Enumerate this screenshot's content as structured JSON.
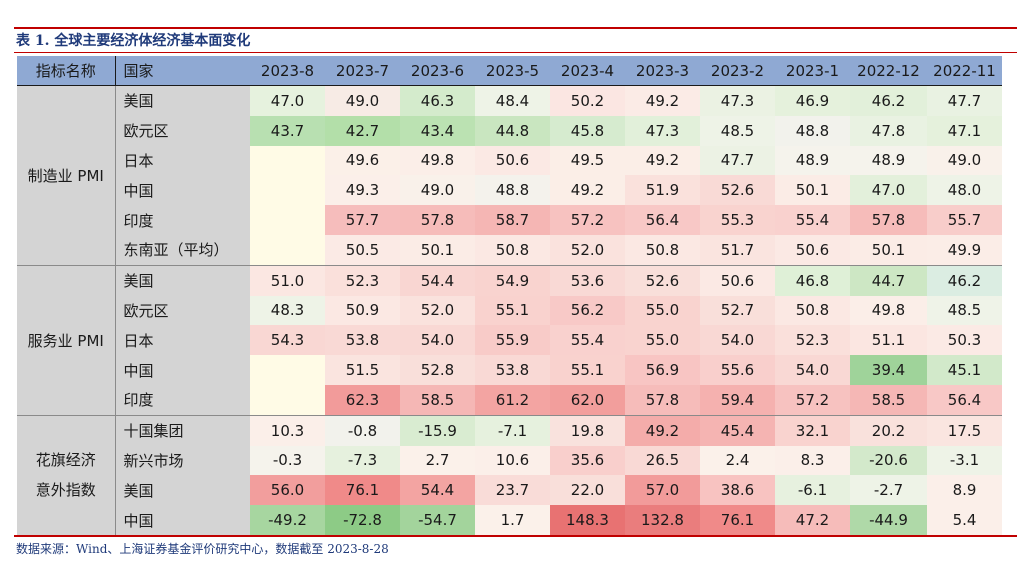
{
  "title": "表 1.  全球主要经济体经济基本面变化",
  "source": "数据来源：Wind、上海证券基金评价研究中心，数据截至 2023-8-28",
  "headers": {
    "indicator": "指标名称",
    "country": "国家",
    "months": [
      "2023-8",
      "2023-7",
      "2023-6",
      "2023-5",
      "2023-4",
      "2023-3",
      "2023-2",
      "2023-1",
      "2022-12",
      "2022-11"
    ]
  },
  "groups": [
    {
      "name": "制造业 PMI",
      "rows": [
        {
          "country": "美国",
          "values": [
            "47.0",
            "49.0",
            "46.3",
            "48.4",
            "50.2",
            "49.2",
            "47.3",
            "46.9",
            "46.2",
            "47.7"
          ],
          "colors": [
            "#e6f2de",
            "#f7ebe5",
            "#d4ebcc",
            "#eef3e7",
            "#fbe6e2",
            "#fbebe6",
            "#ebf2e3",
            "#e5f1dc",
            "#e2f0da",
            "#e9f2e2"
          ]
        },
        {
          "country": "欧元区",
          "values": [
            "43.7",
            "42.7",
            "43.4",
            "44.8",
            "45.8",
            "47.3",
            "48.5",
            "48.8",
            "47.8",
            "47.1"
          ],
          "colors": [
            "#b8e0b1",
            "#b3dfa9",
            "#bbe2b2",
            "#c9e6c0",
            "#d6ebcf",
            "#e2f0da",
            "#eef3e7",
            "#f2f2ec",
            "#e9f2e2",
            "#e5f1dc"
          ]
        },
        {
          "country": "日本",
          "values": [
            "",
            "49.6",
            "49.8",
            "50.6",
            "49.5",
            "49.2",
            "47.7",
            "48.9",
            "48.9",
            "49.0"
          ],
          "colors": [
            "#fffbe6",
            "#fbf0e8",
            "#fbeee8",
            "#fbe9e4",
            "#fbeee7",
            "#fbeee7",
            "#ecf2e4",
            "#f5f3ec",
            "#f5f3ec",
            "#f9f1ea"
          ]
        },
        {
          "country": "中国",
          "values": [
            "",
            "49.3",
            "49.0",
            "48.8",
            "49.2",
            "51.9",
            "52.6",
            "50.1",
            "47.0",
            "48.0"
          ],
          "colors": [
            "#fffbe6",
            "#fbefe9",
            "#f9f1ea",
            "#f4f2ec",
            "#fbeee7",
            "#fae1dc",
            "#f9dad6",
            "#fbece6",
            "#e3f0db",
            "#eef3e7"
          ]
        },
        {
          "country": "印度",
          "values": [
            "",
            "57.7",
            "57.8",
            "58.7",
            "57.2",
            "56.4",
            "55.3",
            "55.4",
            "57.8",
            "55.7"
          ],
          "colors": [
            "#fffbe6",
            "#f6bdbc",
            "#f6bcba",
            "#f5b6b4",
            "#f7c2c0",
            "#f8c8c6",
            "#f9d3cf",
            "#f9d1ce",
            "#f6bcba",
            "#f8cdca"
          ]
        },
        {
          "country": "东南亚（平均）",
          "values": [
            "",
            "50.5",
            "50.1",
            "50.8",
            "52.0",
            "50.8",
            "51.7",
            "50.6",
            "50.1",
            "49.9"
          ],
          "colors": [
            "#fffbe6",
            "#fbeae5",
            "#fbece6",
            "#fbe8e3",
            "#fae2dd",
            "#fbe8e3",
            "#fae4df",
            "#fbe9e4",
            "#fbece6",
            "#fbede7"
          ]
        }
      ]
    },
    {
      "name": "服务业 PMI",
      "rows": [
        {
          "country": "美国",
          "values": [
            "51.0",
            "52.3",
            "54.4",
            "54.9",
            "53.6",
            "52.6",
            "50.6",
            "46.8",
            "44.7",
            "46.2"
          ],
          "colors": [
            "#fbe7e2",
            "#fae0db",
            "#f9d6d2",
            "#f9d3cf",
            "#f9d9d5",
            "#f9dfda",
            "#fbe9e4",
            "#dff0d7",
            "#cde7c4",
            "#dbede2"
          ]
        },
        {
          "country": "欧元区",
          "values": [
            "48.3",
            "50.9",
            "52.0",
            "55.1",
            "56.2",
            "55.0",
            "52.7",
            "50.8",
            "49.8",
            "48.5"
          ],
          "colors": [
            "#eef3e7",
            "#fbe8e3",
            "#fae2dd",
            "#f9d2ce",
            "#f8c9c7",
            "#f9d3cf",
            "#f9dfda",
            "#fbe8e3",
            "#fbeee8",
            "#eff3e8"
          ]
        },
        {
          "country": "日本",
          "values": [
            "54.3",
            "53.8",
            "54.0",
            "55.9",
            "55.4",
            "55.0",
            "54.0",
            "52.3",
            "51.1",
            "50.3"
          ],
          "colors": [
            "#f9d7d3",
            "#f9d9d5",
            "#f9d8d4",
            "#f8cbc8",
            "#f9d1ce",
            "#f9d3cf",
            "#f9d8d4",
            "#fae0db",
            "#fbe6e1",
            "#fbeae5"
          ]
        },
        {
          "country": "中国",
          "values": [
            "",
            "51.5",
            "52.8",
            "53.8",
            "55.1",
            "56.9",
            "55.6",
            "54.0",
            "39.4",
            "45.1"
          ],
          "colors": [
            "#fffbe6",
            "#fae4df",
            "#f9dfda",
            "#f9d9d5",
            "#f9d2ce",
            "#f8c5c3",
            "#f9cfcc",
            "#f9d8d4",
            "#9fd39a",
            "#d2e9ca"
          ]
        },
        {
          "country": "印度",
          "values": [
            "",
            "62.3",
            "58.5",
            "61.2",
            "62.0",
            "57.8",
            "59.4",
            "57.2",
            "58.5",
            "56.4"
          ],
          "colors": [
            "#fffbe6",
            "#f29b9a",
            "#f5b7b5",
            "#f3a4a2",
            "#f29e9c",
            "#f6bcba",
            "#f5b1af",
            "#f7c2c0",
            "#f5b7b5",
            "#f8c8c6"
          ]
        }
      ]
    },
    {
      "name": "花旗经济意外指数",
      "rows": [
        {
          "country": "十国集团",
          "values": [
            "10.3",
            "-0.8",
            "-15.9",
            "-7.1",
            "19.8",
            "49.2",
            "45.4",
            "32.1",
            "20.2",
            "17.5"
          ],
          "colors": [
            "#fbefe9",
            "#f2f2ec",
            "#d9ecd1",
            "#e6f1de",
            "#f9e2dd",
            "#f4acaa",
            "#f5b4b2",
            "#f9d3cf",
            "#f9e1dc",
            "#fae5e0"
          ]
        },
        {
          "country": "新兴市场",
          "values": [
            "-0.3",
            "-7.3",
            "2.7",
            "10.6",
            "35.6",
            "26.5",
            "2.4",
            "8.3",
            "-20.6",
            "-3.1"
          ],
          "colors": [
            "#f5f3ec",
            "#e6f1de",
            "#fbf1ea",
            "#fbefe9",
            "#f9cfcc",
            "#f9d9d5",
            "#fbf1ea",
            "#fbefe9",
            "#d3e9cb",
            "#eef3e7"
          ]
        },
        {
          "country": "美国",
          "values": [
            "56.0",
            "76.1",
            "54.4",
            "23.7",
            "22.0",
            "57.0",
            "38.6",
            "-6.1",
            "-2.7",
            "8.9"
          ],
          "colors": [
            "#f29e9d",
            "#f08a89",
            "#f3a4a2",
            "#f9dcd8",
            "#f9dfda",
            "#f29b9a",
            "#f8c3c1",
            "#e7f1df",
            "#eef3e7",
            "#fbefe9"
          ]
        },
        {
          "country": "中国",
          "values": [
            "-49.2",
            "-72.8",
            "-54.7",
            "1.7",
            "148.3",
            "132.8",
            "76.1",
            "47.2",
            "-44.9",
            "5.4"
          ],
          "colors": [
            "#a7d6a0",
            "#8dcb86",
            "#a3d49c",
            "#fbf1ea",
            "#e87272",
            "#ea7d7d",
            "#f08a89",
            "#f6bcba",
            "#afd9a8",
            "#fbefe9"
          ]
        }
      ]
    }
  ]
}
